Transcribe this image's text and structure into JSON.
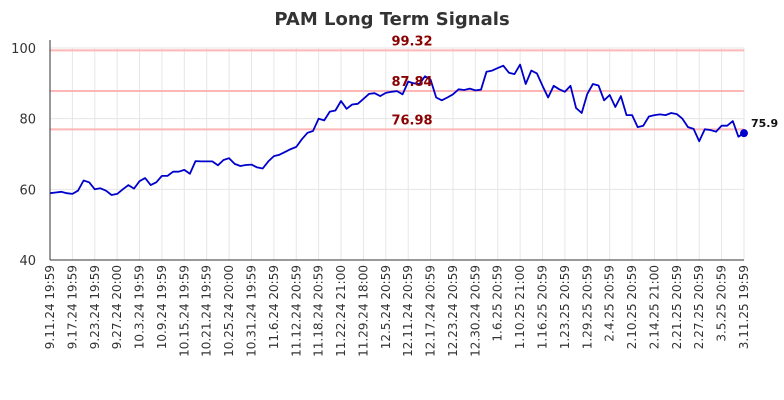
{
  "chart_data": {
    "type": "line",
    "title": "PAM Long Term Signals",
    "xlabel": "",
    "ylabel": "",
    "ylim": [
      40,
      100
    ],
    "y_ticks": [
      40,
      60,
      80,
      100
    ],
    "grid": true,
    "x_tick_labels": [
      "9.11.24 19:59",
      "9.17.24 19:59",
      "9.23.24 19:59",
      "9.27.24 20:00",
      "10.3.24 19:59",
      "10.9.24 19:59",
      "10.15.24 19:59",
      "10.21.24 19:59",
      "10.25.24 20:00",
      "10.31.24 19:59",
      "11.6.24 20:59",
      "11.12.24 20:59",
      "11.18.24 20:59",
      "11.22.24 21:00",
      "11.29.24 18:00",
      "12.5.24 20:59",
      "12.11.24 20:59",
      "12.17.24 20:59",
      "12.23.24 20:59",
      "12.30.24 20:59",
      "1.6.25 20:59",
      "1.10.25 21:00",
      "1.16.25 20:59",
      "1.23.25 20:59",
      "1.29.25 20:59",
      "2.4.25 20:59",
      "2.10.25 20:59",
      "2.14.25 21:00",
      "2.21.25 20:59",
      "2.27.25 20:59",
      "3.5.25 20:59",
      "3.11.25 19:59"
    ],
    "reference_lines": [
      {
        "value": 99.32,
        "label": "99.32",
        "color": "#ffb6b6"
      },
      {
        "value": 87.84,
        "label": "87.84",
        "color": "#ffb6b6"
      },
      {
        "value": 76.98,
        "label": "76.98",
        "color": "#ffb6b6"
      }
    ],
    "series": [
      {
        "color": "#0000cc",
        "values": [
          58.9,
          59.1,
          59.3,
          58.9,
          58.7,
          59.6,
          62.5,
          62.0,
          60.0,
          60.3,
          59.6,
          58.4,
          58.7,
          60.0,
          61.2,
          60.2,
          62.3,
          63.2,
          61.2,
          62.0,
          63.8,
          63.8,
          65.0,
          65.0,
          65.5,
          64.4,
          68.0,
          67.9,
          67.9,
          67.9,
          66.8,
          68.3,
          68.8,
          67.2,
          66.6,
          66.9,
          67.0,
          66.2,
          65.9,
          67.9,
          69.4,
          69.8,
          70.6,
          71.4,
          72.0,
          74.2,
          76.0,
          76.5,
          80.0,
          79.5,
          82.0,
          82.3,
          85.0,
          82.8,
          84.0,
          84.2,
          85.6,
          87.0,
          87.2,
          86.4,
          87.3,
          87.6,
          87.8,
          86.9,
          90.5,
          90.0,
          89.8,
          92.0,
          91.0,
          86.0,
          85.2,
          86.0,
          86.9,
          88.3,
          88.1,
          88.5,
          88.0,
          88.2,
          93.3,
          93.6,
          94.3,
          95.0,
          93.0,
          92.6,
          95.3,
          89.8,
          93.6,
          92.8,
          89.3,
          86.0,
          89.3,
          88.3,
          87.6,
          89.3,
          83.0,
          81.6,
          87.0,
          89.8,
          89.4,
          85.2,
          86.7,
          83.3,
          86.4,
          81.0,
          81.0,
          77.6,
          78.0,
          80.6,
          81.0,
          81.2,
          81.0,
          81.6,
          81.3,
          80.0,
          77.6,
          77.1,
          73.6,
          77.0,
          76.8,
          76.3,
          78.0,
          78.0,
          79.3,
          74.9,
          75.9
        ]
      }
    ],
    "last_value_label": "75.9"
  }
}
